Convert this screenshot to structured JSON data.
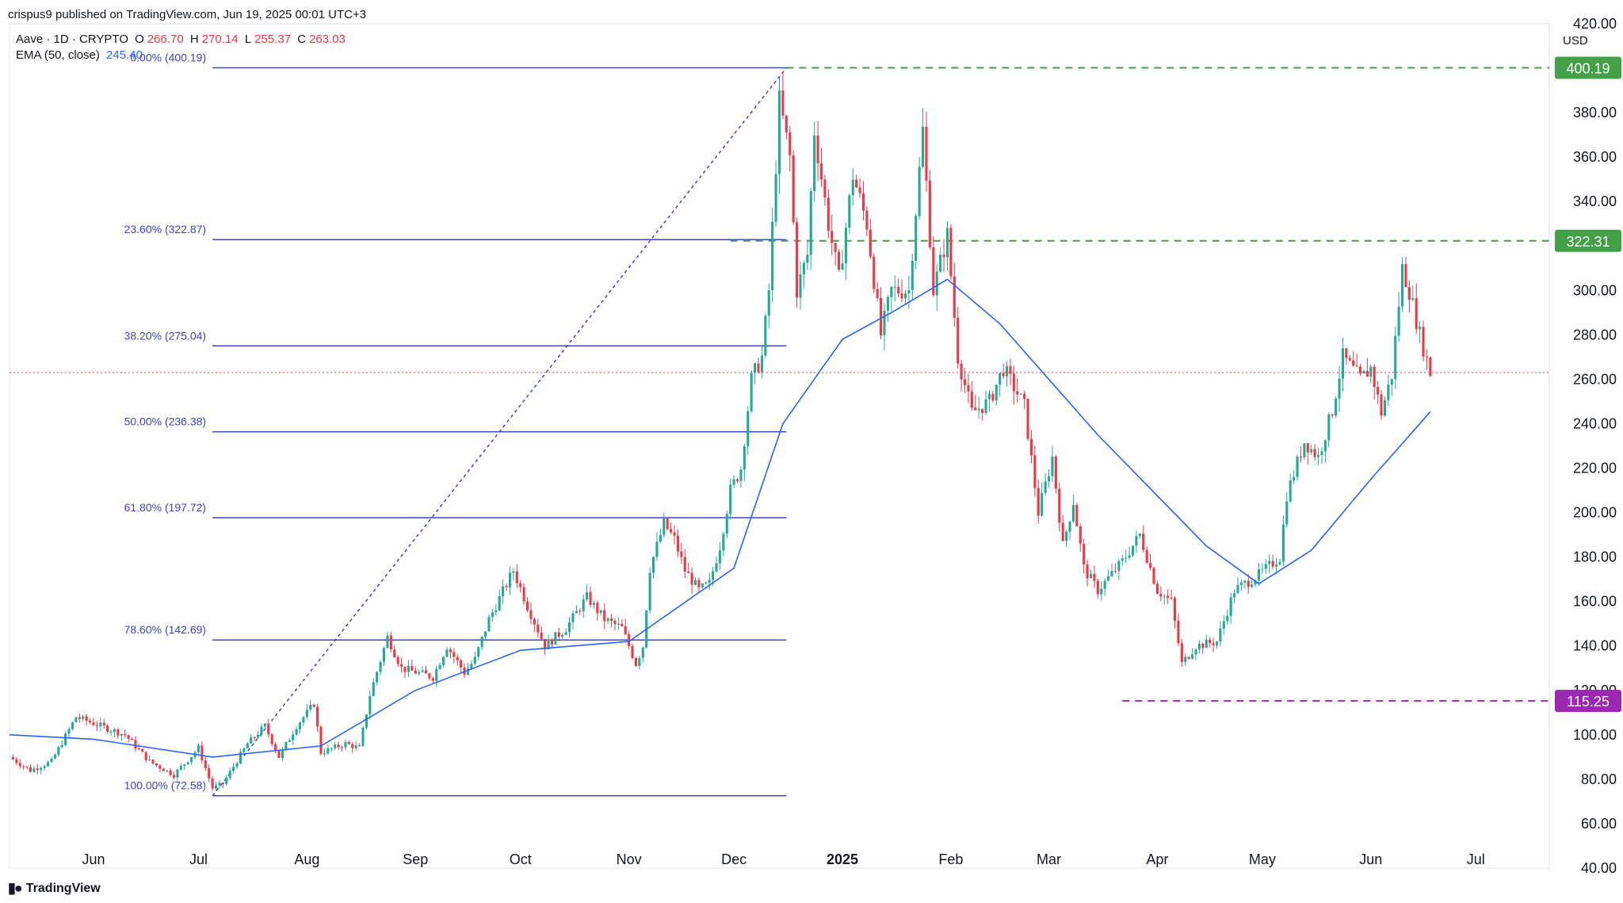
{
  "header": {
    "published": "crispus9 published on TradingView.com, Jun 19, 2025 00:01 UTC+3"
  },
  "legend": {
    "symbol": "Aave · 1D · CRYPTO",
    "open_label": "O",
    "open": "266.70",
    "high_label": "H",
    "high": "270.14",
    "low_label": "L",
    "low": "255.37",
    "close_label": "C",
    "close": "263.03",
    "ema_label": "EMA (50, close)",
    "ema_value": "245.40"
  },
  "footer": {
    "brand": "TradingView"
  },
  "colors": {
    "up": "#22ab94",
    "down": "#f23645",
    "ema": "#2962ff",
    "fib": "#3d43c9",
    "green_level": "#43a047",
    "purple_level": "#9c27b0",
    "last_price": "#f23645"
  },
  "chart_data": {
    "type": "candlestick",
    "currency": "USD",
    "ylim": [
      40,
      420
    ],
    "y_ticks": [
      40,
      60,
      80,
      100,
      120,
      140,
      160,
      180,
      200,
      220,
      240,
      260,
      280,
      300,
      320,
      340,
      360,
      380,
      400,
      420
    ],
    "y_tick_labels": [
      "40.00",
      "60.00",
      "80.00",
      "100.00",
      "120.00",
      "140.00",
      "160.00",
      "180.00",
      "200.00",
      "220.00",
      "240.00",
      "260.00",
      "280.00",
      "300.00",
      "320.00",
      "340.00",
      "360.00",
      "380.00",
      "400.00",
      "420.00"
    ],
    "x_range": [
      "2024-05-08",
      "2025-07-22"
    ],
    "x_ticks": [
      {
        "date": "2024-06-01",
        "label": "Jun"
      },
      {
        "date": "2024-07-01",
        "label": "Jul"
      },
      {
        "date": "2024-08-01",
        "label": "Aug"
      },
      {
        "date": "2024-09-01",
        "label": "Sep"
      },
      {
        "date": "2024-10-01",
        "label": "Oct"
      },
      {
        "date": "2024-11-01",
        "label": "Nov"
      },
      {
        "date": "2024-12-01",
        "label": "Dec"
      },
      {
        "date": "2025-01-01",
        "label": "2025",
        "bold": true
      },
      {
        "date": "2025-02-01",
        "label": "Feb"
      },
      {
        "date": "2025-03-01",
        "label": "Mar"
      },
      {
        "date": "2025-04-01",
        "label": "Apr"
      },
      {
        "date": "2025-05-01",
        "label": "May"
      },
      {
        "date": "2025-06-01",
        "label": "Jun"
      },
      {
        "date": "2025-07-01",
        "label": "Jul"
      }
    ],
    "price_path": [
      [
        "2024-05-08",
        90
      ],
      [
        "2024-05-14",
        84
      ],
      [
        "2024-05-20",
        88
      ],
      [
        "2024-05-27",
        108
      ],
      [
        "2024-06-03",
        104
      ],
      [
        "2024-06-10",
        100
      ],
      [
        "2024-06-17",
        88
      ],
      [
        "2024-06-24",
        82
      ],
      [
        "2024-07-01",
        94
      ],
      [
        "2024-07-05",
        76
      ],
      [
        "2024-07-08",
        78
      ],
      [
        "2024-07-15",
        96
      ],
      [
        "2024-07-20",
        104
      ],
      [
        "2024-07-24",
        90
      ],
      [
        "2024-07-29",
        104
      ],
      [
        "2024-08-03",
        114
      ],
      [
        "2024-08-05",
        92
      ],
      [
        "2024-08-12",
        96
      ],
      [
        "2024-08-16",
        94
      ],
      [
        "2024-08-19",
        118
      ],
      [
        "2024-08-24",
        144
      ],
      [
        "2024-08-28",
        130
      ],
      [
        "2024-09-06",
        126
      ],
      [
        "2024-09-10",
        140
      ],
      [
        "2024-09-15",
        128
      ],
      [
        "2024-09-18",
        134
      ],
      [
        "2024-09-22",
        152
      ],
      [
        "2024-09-29",
        174
      ],
      [
        "2024-10-03",
        158
      ],
      [
        "2024-10-08",
        140
      ],
      [
        "2024-10-14",
        148
      ],
      [
        "2024-10-20",
        162
      ],
      [
        "2024-10-25",
        152
      ],
      [
        "2024-10-30",
        148
      ],
      [
        "2024-11-03",
        132
      ],
      [
        "2024-11-05",
        140
      ],
      [
        "2024-11-07",
        175
      ],
      [
        "2024-11-11",
        195
      ],
      [
        "2024-11-14",
        188
      ],
      [
        "2024-11-17",
        174
      ],
      [
        "2024-11-21",
        165
      ],
      [
        "2024-11-24",
        168
      ],
      [
        "2024-11-27",
        185
      ],
      [
        "2024-11-30",
        210
      ],
      [
        "2024-12-03",
        220
      ],
      [
        "2024-12-06",
        260
      ],
      [
        "2024-12-09",
        270
      ],
      [
        "2024-12-11",
        300
      ],
      [
        "2024-12-14",
        385
      ],
      [
        "2024-12-17",
        360
      ],
      [
        "2024-12-19",
        300
      ],
      [
        "2024-12-22",
        316
      ],
      [
        "2024-12-24",
        372
      ],
      [
        "2024-12-28",
        330
      ],
      [
        "2024-12-31",
        305
      ],
      [
        "2025-01-04",
        352
      ],
      [
        "2025-01-08",
        330
      ],
      [
        "2025-01-12",
        280
      ],
      [
        "2025-01-15",
        300
      ],
      [
        "2025-01-20",
        300
      ],
      [
        "2025-01-24",
        372
      ],
      [
        "2025-01-27",
        300
      ],
      [
        "2025-01-31",
        325
      ],
      [
        "2025-02-03",
        270
      ],
      [
        "2025-02-07",
        245
      ],
      [
        "2025-02-12",
        250
      ],
      [
        "2025-02-16",
        265
      ],
      [
        "2025-02-22",
        248
      ],
      [
        "2025-02-26",
        200
      ],
      [
        "2025-03-02",
        225
      ],
      [
        "2025-03-05",
        185
      ],
      [
        "2025-03-08",
        205
      ],
      [
        "2025-03-11",
        175
      ],
      [
        "2025-03-15",
        165
      ],
      [
        "2025-03-22",
        178
      ],
      [
        "2025-03-27",
        190
      ],
      [
        "2025-04-01",
        165
      ],
      [
        "2025-04-05",
        160
      ],
      [
        "2025-04-08",
        132
      ],
      [
        "2025-04-12",
        140
      ],
      [
        "2025-04-18",
        142
      ],
      [
        "2025-04-23",
        165
      ],
      [
        "2025-04-30",
        172
      ],
      [
        "2025-05-06",
        180
      ],
      [
        "2025-05-08",
        208
      ],
      [
        "2025-05-13",
        232
      ],
      [
        "2025-05-17",
        225
      ],
      [
        "2025-05-21",
        246
      ],
      [
        "2025-05-24",
        270
      ],
      [
        "2025-05-29",
        260
      ],
      [
        "2025-06-01",
        265
      ],
      [
        "2025-06-04",
        245
      ],
      [
        "2025-06-07",
        262
      ],
      [
        "2025-06-10",
        310
      ],
      [
        "2025-06-12",
        300
      ],
      [
        "2025-06-15",
        280
      ],
      [
        "2025-06-18",
        263
      ]
    ],
    "ema_path": [
      [
        "2024-05-08",
        100
      ],
      [
        "2024-06-01",
        98
      ],
      [
        "2024-07-05",
        90
      ],
      [
        "2024-08-05",
        95
      ],
      [
        "2024-09-01",
        120
      ],
      [
        "2024-10-01",
        138
      ],
      [
        "2024-11-01",
        142
      ],
      [
        "2024-12-01",
        175
      ],
      [
        "2024-12-15",
        240
      ],
      [
        "2025-01-01",
        278
      ],
      [
        "2025-01-15",
        290
      ],
      [
        "2025-01-31",
        305
      ],
      [
        "2025-02-15",
        285
      ],
      [
        "2025-03-15",
        235
      ],
      [
        "2025-04-15",
        185
      ],
      [
        "2025-04-30",
        168
      ],
      [
        "2025-05-15",
        183
      ],
      [
        "2025-06-01",
        215
      ],
      [
        "2025-06-18",
        245.4
      ]
    ],
    "fibonacci": {
      "start_date": "2024-07-05",
      "end_date": "2024-12-16",
      "levels": [
        {
          "ratio": "0.00%",
          "price": 400.19,
          "label": "0.00% (400.19)"
        },
        {
          "ratio": "23.60%",
          "price": 322.87,
          "label": "23.60% (322.87)"
        },
        {
          "ratio": "38.20%",
          "price": 275.04,
          "label": "38.20% (275.04)"
        },
        {
          "ratio": "50.00%",
          "price": 236.38,
          "label": "50.00% (236.38)"
        },
        {
          "ratio": "61.80%",
          "price": 197.72,
          "label": "61.80% (197.72)"
        },
        {
          "ratio": "78.60%",
          "price": 142.69,
          "label": "78.60% (142.69)"
        },
        {
          "ratio": "100.00%",
          "price": 72.58,
          "label": "100.00% (72.58)"
        }
      ],
      "trend_line": {
        "from": [
          "2024-07-05",
          72.58
        ],
        "to": [
          "2024-12-16",
          400.19
        ]
      }
    },
    "horizontal_levels": [
      {
        "price": 400.19,
        "label": "400.19",
        "color": "#43a047",
        "style": "dashed",
        "from_date": "2024-12-16"
      },
      {
        "price": 322.31,
        "label": "322.31",
        "color": "#43a047",
        "style": "dashed",
        "from_date": "2024-11-30"
      },
      {
        "price": 115.25,
        "label": "115.25",
        "color": "#9c27b0",
        "style": "dashed",
        "from_date": "2025-03-22"
      }
    ],
    "last_price": 263.03
  }
}
